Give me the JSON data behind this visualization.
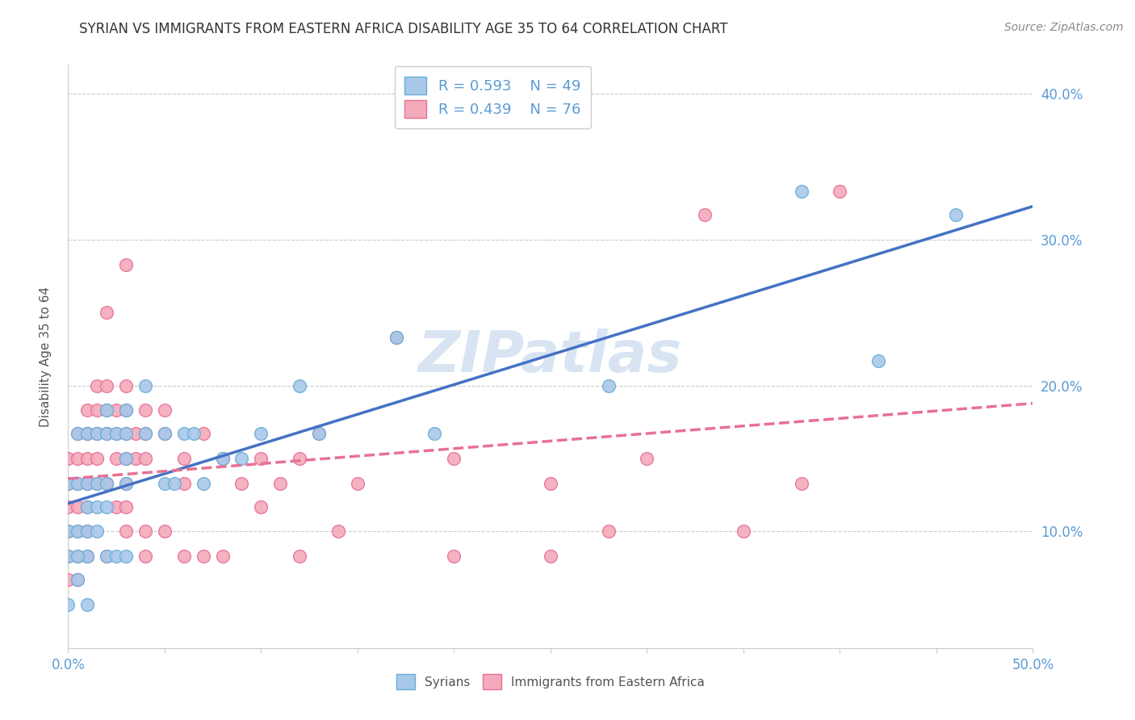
{
  "title": "SYRIAN VS IMMIGRANTS FROM EASTERN AFRICA DISABILITY AGE 35 TO 64 CORRELATION CHART",
  "source_text": "Source: ZipAtlas.com",
  "ylabel": "Disability Age 35 to 64",
  "xlim": [
    0.0,
    0.5
  ],
  "ylim": [
    0.02,
    0.42
  ],
  "x_ticks": [
    0.0,
    0.05,
    0.1,
    0.15,
    0.2,
    0.25,
    0.3,
    0.35,
    0.4,
    0.45,
    0.5
  ],
  "y_ticks": [
    0.1,
    0.2,
    0.3,
    0.4
  ],
  "grid_color": "#cccccc",
  "background_color": "#ffffff",
  "watermark_text": "ZIPatlas",
  "syrian_color": "#a8c8ea",
  "eastern_color": "#f4aabb",
  "syrian_edge_color": "#6aaed6",
  "eastern_edge_color": "#e87095",
  "syrian_line_color": "#4472c4",
  "eastern_line_color": "#e87095",
  "tick_color": "#5b9bd5",
  "ylabel_color": "#555555",
  "title_color": "#333333",
  "source_color": "#888888",
  "legend_text_color": "#5b9bd5",
  "bottom_legend_color": "#555555",
  "title_fontsize": 12,
  "axis_label_fontsize": 11,
  "tick_fontsize": 12,
  "legend_fontsize": 13,
  "source_fontsize": 10,
  "watermark_fontsize": 52,
  "scatter_size": 130,
  "line_width": 2.5,
  "syrian_scatter": [
    [
      0.0,
      0.133
    ],
    [
      0.0,
      0.1
    ],
    [
      0.0,
      0.083
    ],
    [
      0.005,
      0.167
    ],
    [
      0.005,
      0.133
    ],
    [
      0.005,
      0.1
    ],
    [
      0.005,
      0.067
    ],
    [
      0.01,
      0.167
    ],
    [
      0.01,
      0.133
    ],
    [
      0.01,
      0.117
    ],
    [
      0.01,
      0.1
    ],
    [
      0.01,
      0.083
    ],
    [
      0.015,
      0.167
    ],
    [
      0.015,
      0.133
    ],
    [
      0.015,
      0.117
    ],
    [
      0.015,
      0.1
    ],
    [
      0.02,
      0.183
    ],
    [
      0.02,
      0.167
    ],
    [
      0.02,
      0.133
    ],
    [
      0.02,
      0.117
    ],
    [
      0.025,
      0.167
    ],
    [
      0.03,
      0.183
    ],
    [
      0.03,
      0.167
    ],
    [
      0.03,
      0.15
    ],
    [
      0.03,
      0.133
    ],
    [
      0.04,
      0.2
    ],
    [
      0.04,
      0.167
    ],
    [
      0.05,
      0.167
    ],
    [
      0.05,
      0.133
    ],
    [
      0.055,
      0.133
    ],
    [
      0.06,
      0.167
    ],
    [
      0.065,
      0.167
    ],
    [
      0.07,
      0.133
    ],
    [
      0.08,
      0.15
    ],
    [
      0.09,
      0.15
    ],
    [
      0.1,
      0.167
    ],
    [
      0.12,
      0.2
    ],
    [
      0.13,
      0.167
    ],
    [
      0.17,
      0.233
    ],
    [
      0.19,
      0.167
    ],
    [
      0.28,
      0.2
    ],
    [
      0.38,
      0.333
    ],
    [
      0.42,
      0.217
    ],
    [
      0.46,
      0.317
    ],
    [
      0.0,
      0.05
    ],
    [
      0.005,
      0.083
    ],
    [
      0.01,
      0.05
    ],
    [
      0.02,
      0.083
    ],
    [
      0.025,
      0.083
    ],
    [
      0.03,
      0.083
    ]
  ],
  "eastern_scatter": [
    [
      0.0,
      0.15
    ],
    [
      0.0,
      0.133
    ],
    [
      0.0,
      0.117
    ],
    [
      0.0,
      0.1
    ],
    [
      0.0,
      0.083
    ],
    [
      0.0,
      0.067
    ],
    [
      0.005,
      0.167
    ],
    [
      0.005,
      0.15
    ],
    [
      0.005,
      0.133
    ],
    [
      0.005,
      0.117
    ],
    [
      0.005,
      0.1
    ],
    [
      0.005,
      0.083
    ],
    [
      0.01,
      0.183
    ],
    [
      0.01,
      0.167
    ],
    [
      0.01,
      0.15
    ],
    [
      0.01,
      0.133
    ],
    [
      0.01,
      0.117
    ],
    [
      0.01,
      0.1
    ],
    [
      0.015,
      0.2
    ],
    [
      0.015,
      0.183
    ],
    [
      0.015,
      0.167
    ],
    [
      0.015,
      0.15
    ],
    [
      0.015,
      0.133
    ],
    [
      0.02,
      0.25
    ],
    [
      0.02,
      0.2
    ],
    [
      0.02,
      0.183
    ],
    [
      0.02,
      0.167
    ],
    [
      0.02,
      0.133
    ],
    [
      0.025,
      0.183
    ],
    [
      0.025,
      0.167
    ],
    [
      0.025,
      0.15
    ],
    [
      0.03,
      0.283
    ],
    [
      0.03,
      0.2
    ],
    [
      0.03,
      0.183
    ],
    [
      0.03,
      0.167
    ],
    [
      0.03,
      0.15
    ],
    [
      0.03,
      0.133
    ],
    [
      0.035,
      0.167
    ],
    [
      0.035,
      0.15
    ],
    [
      0.04,
      0.183
    ],
    [
      0.04,
      0.167
    ],
    [
      0.04,
      0.15
    ],
    [
      0.05,
      0.183
    ],
    [
      0.05,
      0.167
    ],
    [
      0.06,
      0.15
    ],
    [
      0.06,
      0.133
    ],
    [
      0.07,
      0.167
    ],
    [
      0.08,
      0.15
    ],
    [
      0.09,
      0.133
    ],
    [
      0.1,
      0.15
    ],
    [
      0.11,
      0.133
    ],
    [
      0.12,
      0.15
    ],
    [
      0.13,
      0.167
    ],
    [
      0.15,
      0.133
    ],
    [
      0.17,
      0.233
    ],
    [
      0.2,
      0.15
    ],
    [
      0.25,
      0.133
    ],
    [
      0.3,
      0.15
    ],
    [
      0.33,
      0.317
    ],
    [
      0.38,
      0.133
    ],
    [
      0.4,
      0.333
    ],
    [
      0.005,
      0.067
    ],
    [
      0.01,
      0.083
    ],
    [
      0.02,
      0.083
    ],
    [
      0.025,
      0.117
    ],
    [
      0.03,
      0.117
    ],
    [
      0.03,
      0.1
    ],
    [
      0.04,
      0.1
    ],
    [
      0.04,
      0.083
    ],
    [
      0.05,
      0.1
    ],
    [
      0.06,
      0.083
    ],
    [
      0.07,
      0.083
    ],
    [
      0.08,
      0.083
    ],
    [
      0.1,
      0.117
    ],
    [
      0.12,
      0.083
    ],
    [
      0.14,
      0.1
    ],
    [
      0.2,
      0.083
    ],
    [
      0.25,
      0.083
    ],
    [
      0.28,
      0.1
    ],
    [
      0.35,
      0.1
    ]
  ]
}
